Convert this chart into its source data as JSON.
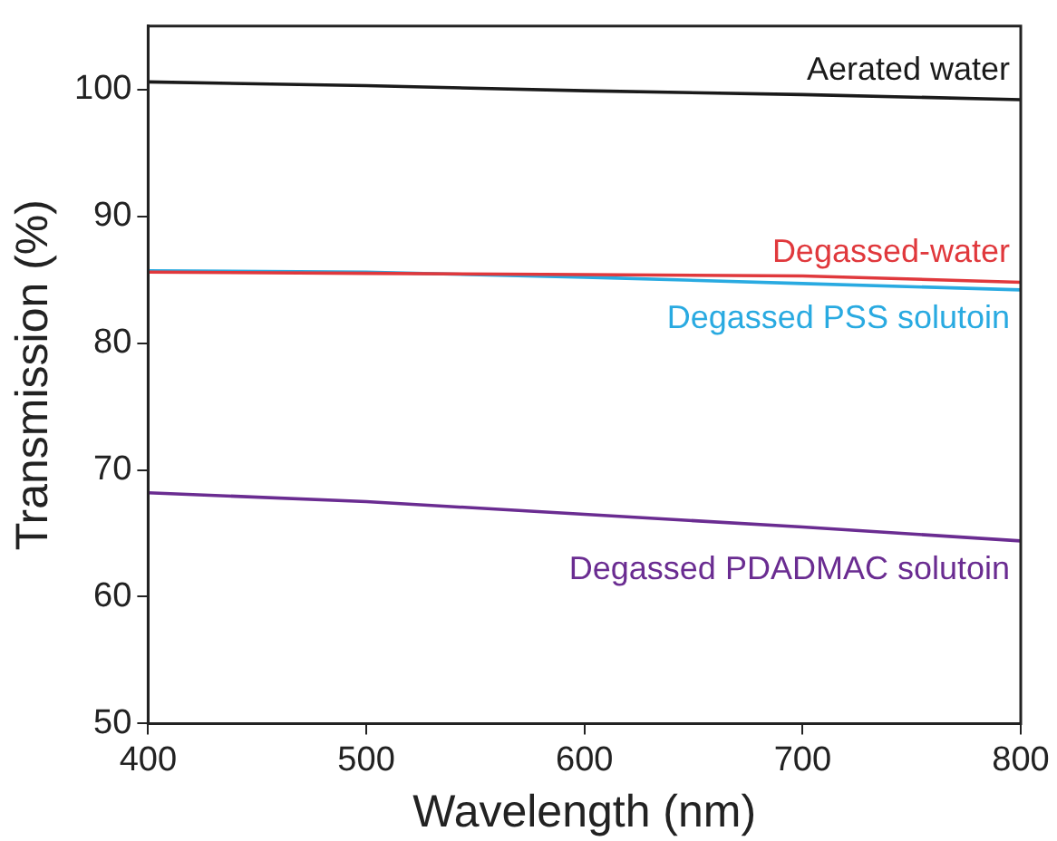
{
  "chart_data": {
    "type": "line",
    "xlabel": "Wavelength (nm)",
    "ylabel": "Transmission (%)",
    "x": [
      400,
      500,
      600,
      700,
      800
    ],
    "series": [
      {
        "name": "Aerated water",
        "color": "#1a1a1a",
        "values": [
          100.6,
          100.3,
          99.9,
          99.6,
          99.2
        ]
      },
      {
        "name": "Degassed-water",
        "color": "#e0383c",
        "values": [
          85.6,
          85.5,
          85.4,
          85.3,
          84.8
        ]
      },
      {
        "name": "Degassed PSS solutoin",
        "color": "#29aae1",
        "values": [
          85.7,
          85.6,
          85.2,
          84.7,
          84.2
        ]
      },
      {
        "name": "Degassed PDADMAC solutoin",
        "color": "#6a2c91",
        "values": [
          68.2,
          67.5,
          66.5,
          65.5,
          64.4
        ]
      }
    ],
    "xlim": [
      400,
      800
    ],
    "xticks": [
      400,
      500,
      600,
      700,
      800
    ],
    "ylim": [
      50,
      105
    ],
    "yticks": [
      50,
      60,
      70,
      80,
      90,
      100
    ],
    "grid": false,
    "legend": false,
    "marker": "none",
    "line_style": "solid"
  }
}
